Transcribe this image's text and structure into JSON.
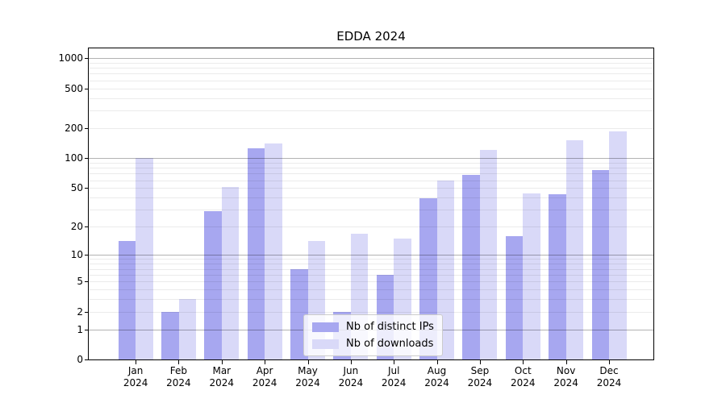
{
  "figure": {
    "title": "EDDA 2024"
  },
  "chart_data": {
    "type": "bar",
    "title": "EDDA 2024",
    "categories": [
      "Jan",
      "Feb",
      "Mar",
      "Apr",
      "May",
      "Jun",
      "Jul",
      "Aug",
      "Sep",
      "Oct",
      "Nov",
      "Dec"
    ],
    "category_year": "2024",
    "series": [
      {
        "name": "Nb of distinct IPs",
        "color": "#a7a7f0",
        "values": [
          14,
          2,
          29,
          125,
          7,
          2,
          6,
          39,
          68,
          16,
          43,
          76
        ]
      },
      {
        "name": "Nb of downloads",
        "color": "#d9d9f8",
        "values": [
          100,
          3,
          51,
          140,
          14,
          17,
          15,
          60,
          120,
          44,
          150,
          185
        ]
      }
    ],
    "xlabel": "",
    "ylabel": "",
    "yscale": "log(value+1)",
    "yticks": [
      0,
      1,
      2,
      5,
      10,
      20,
      50,
      100,
      200,
      500,
      1000
    ],
    "ylim": [
      0,
      1250
    ],
    "grid": {
      "major_lines_at": [
        1,
        10,
        100,
        1000
      ],
      "minor_lines": "2-9 times powers of 10"
    },
    "legend_position": "lower center"
  }
}
